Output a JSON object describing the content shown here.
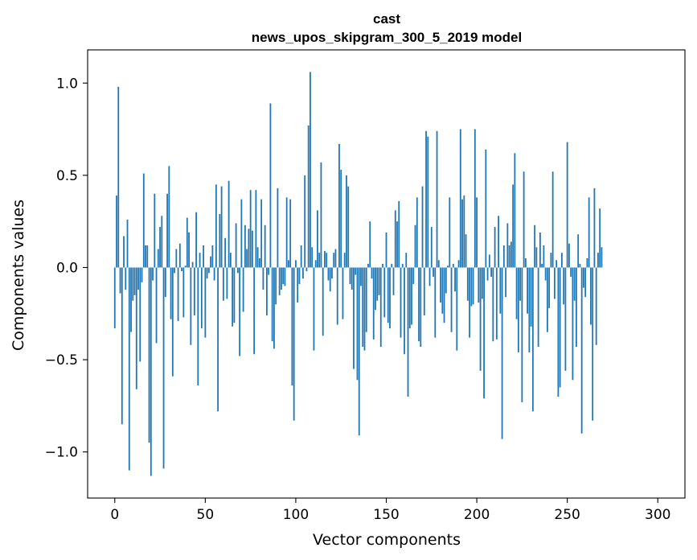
{
  "chart_data": {
    "type": "bar",
    "title": "cast",
    "subtitle": "news_upos_skipgram_300_5_2019 model",
    "xlabel": "Vector components",
    "ylabel": "Components values",
    "xlim": [
      -15,
      315
    ],
    "ylim": [
      -1.25,
      1.18
    ],
    "xticks": [
      0,
      50,
      100,
      150,
      200,
      250,
      300
    ],
    "xtick_labels": [
      "0",
      "50",
      "100",
      "150",
      "200",
      "250",
      "300"
    ],
    "yticks": [
      -1.0,
      -0.5,
      0.0,
      0.5,
      1.0
    ],
    "ytick_labels": [
      "−1.0",
      "−0.5",
      "0.0",
      "0.5",
      "1.0"
    ],
    "grid": false,
    "bar_color": "#1f77b4",
    "values": [
      -0.33,
      0.39,
      0.98,
      -0.14,
      -0.85,
      0.17,
      -0.12,
      0.26,
      -1.1,
      -0.35,
      -0.18,
      -0.15,
      -0.66,
      -0.12,
      -0.51,
      -0.08,
      0.51,
      0.12,
      0.12,
      -0.95,
      -1.13,
      -0.07,
      0.4,
      -0.41,
      0.1,
      0.22,
      0.28,
      -1.09,
      -0.16,
      0.4,
      0.55,
      -0.28,
      -0.59,
      -0.03,
      0.1,
      -0.29,
      0.13,
      -0.02,
      -0.27,
      0.01,
      0.27,
      0.19,
      -0.42,
      0.03,
      -0.26,
      0.3,
      -0.64,
      0.08,
      -0.33,
      0.12,
      -0.38,
      -0.06,
      -0.03,
      0.06,
      0.12,
      -0.07,
      0.45,
      -0.78,
      0.29,
      0.44,
      -0.18,
      0.16,
      -0.17,
      0.47,
      0.08,
      -0.32,
      -0.3,
      0.24,
      -0.03,
      -0.48,
      0.37,
      -0.24,
      0.23,
      0.1,
      0.21,
      0.42,
      0.2,
      -0.47,
      0.42,
      0.11,
      0.05,
      0.37,
      -0.12,
      0.23,
      -0.26,
      -0.04,
      0.89,
      -0.4,
      -0.44,
      -0.2,
      0.43,
      -0.15,
      -0.12,
      -0.09,
      -0.1,
      0.38,
      0.04,
      0.37,
      -0.64,
      -0.83,
      0.04,
      -0.19,
      -0.09,
      0.12,
      -0.06,
      0.5,
      -0.02,
      0.77,
      1.06,
      0.11,
      -0.45,
      0.04,
      0.31,
      0.08,
      0.57,
      -0.37,
      0.09,
      0.08,
      -0.07,
      -0.13,
      -0.06,
      0.08,
      0.1,
      -0.31,
      0.67,
      0.53,
      -0.28,
      0.08,
      0.5,
      0.44,
      -0.09,
      -0.12,
      -0.55,
      -0.04,
      -0.61,
      -0.91,
      -0.1,
      -0.43,
      -0.45,
      -0.35,
      0.02,
      0.25,
      -0.06,
      -0.39,
      -0.23,
      -0.18,
      -0.15,
      -0.43,
      0.02,
      -0.27,
      0.19,
      -0.3,
      -0.33,
      0.02,
      -0.15,
      0.31,
      0.25,
      0.36,
      -0.38,
      0.02,
      -0.47,
      0.08,
      -0.7,
      -0.33,
      -0.31,
      -0.09,
      0.23,
      0.38,
      -0.4,
      -0.43,
      0.44,
      -0.26,
      0.74,
      0.71,
      -0.1,
      0.22,
      -0.05,
      -0.38,
      0.74,
      0.04,
      -0.19,
      -0.25,
      -0.3,
      -0.14,
      0.01,
      0.38,
      -0.35,
      0.02,
      -0.13,
      -0.45,
      0.04,
      0.75,
      0.37,
      0.39,
      0.18,
      -0.18,
      -0.38,
      -0.21,
      -0.2,
      0.75,
      0.38,
      -0.19,
      -0.56,
      -0.17,
      -0.71,
      0.64,
      -0.07,
      0.07,
      -0.05,
      -0.4,
      0.22,
      -0.39,
      0.28,
      -0.25,
      -0.93,
      0.12,
      -0.16,
      0.24,
      0.12,
      0.14,
      0.45,
      0.62,
      -0.28,
      -0.46,
      -0.18,
      -0.73,
      0.52,
      0.05,
      -0.25,
      -0.46,
      -0.32,
      -0.78,
      0.23,
      0.11,
      -0.43,
      0.19,
      0.02,
      0.12,
      -0.07,
      -0.35,
      -0.22,
      0.08,
      0.52,
      -0.17,
      0.04,
      -0.7,
      -0.65,
      0.08,
      -0.2,
      -0.56,
      0.68,
      0.13,
      -0.05,
      -0.61,
      -0.18,
      -0.43,
      0.18,
      0.02,
      -0.9,
      -0.11,
      -0.16,
      0.05,
      0.38,
      -0.31,
      -0.83,
      0.43,
      -0.42,
      0.08,
      0.32,
      0.11
    ]
  }
}
